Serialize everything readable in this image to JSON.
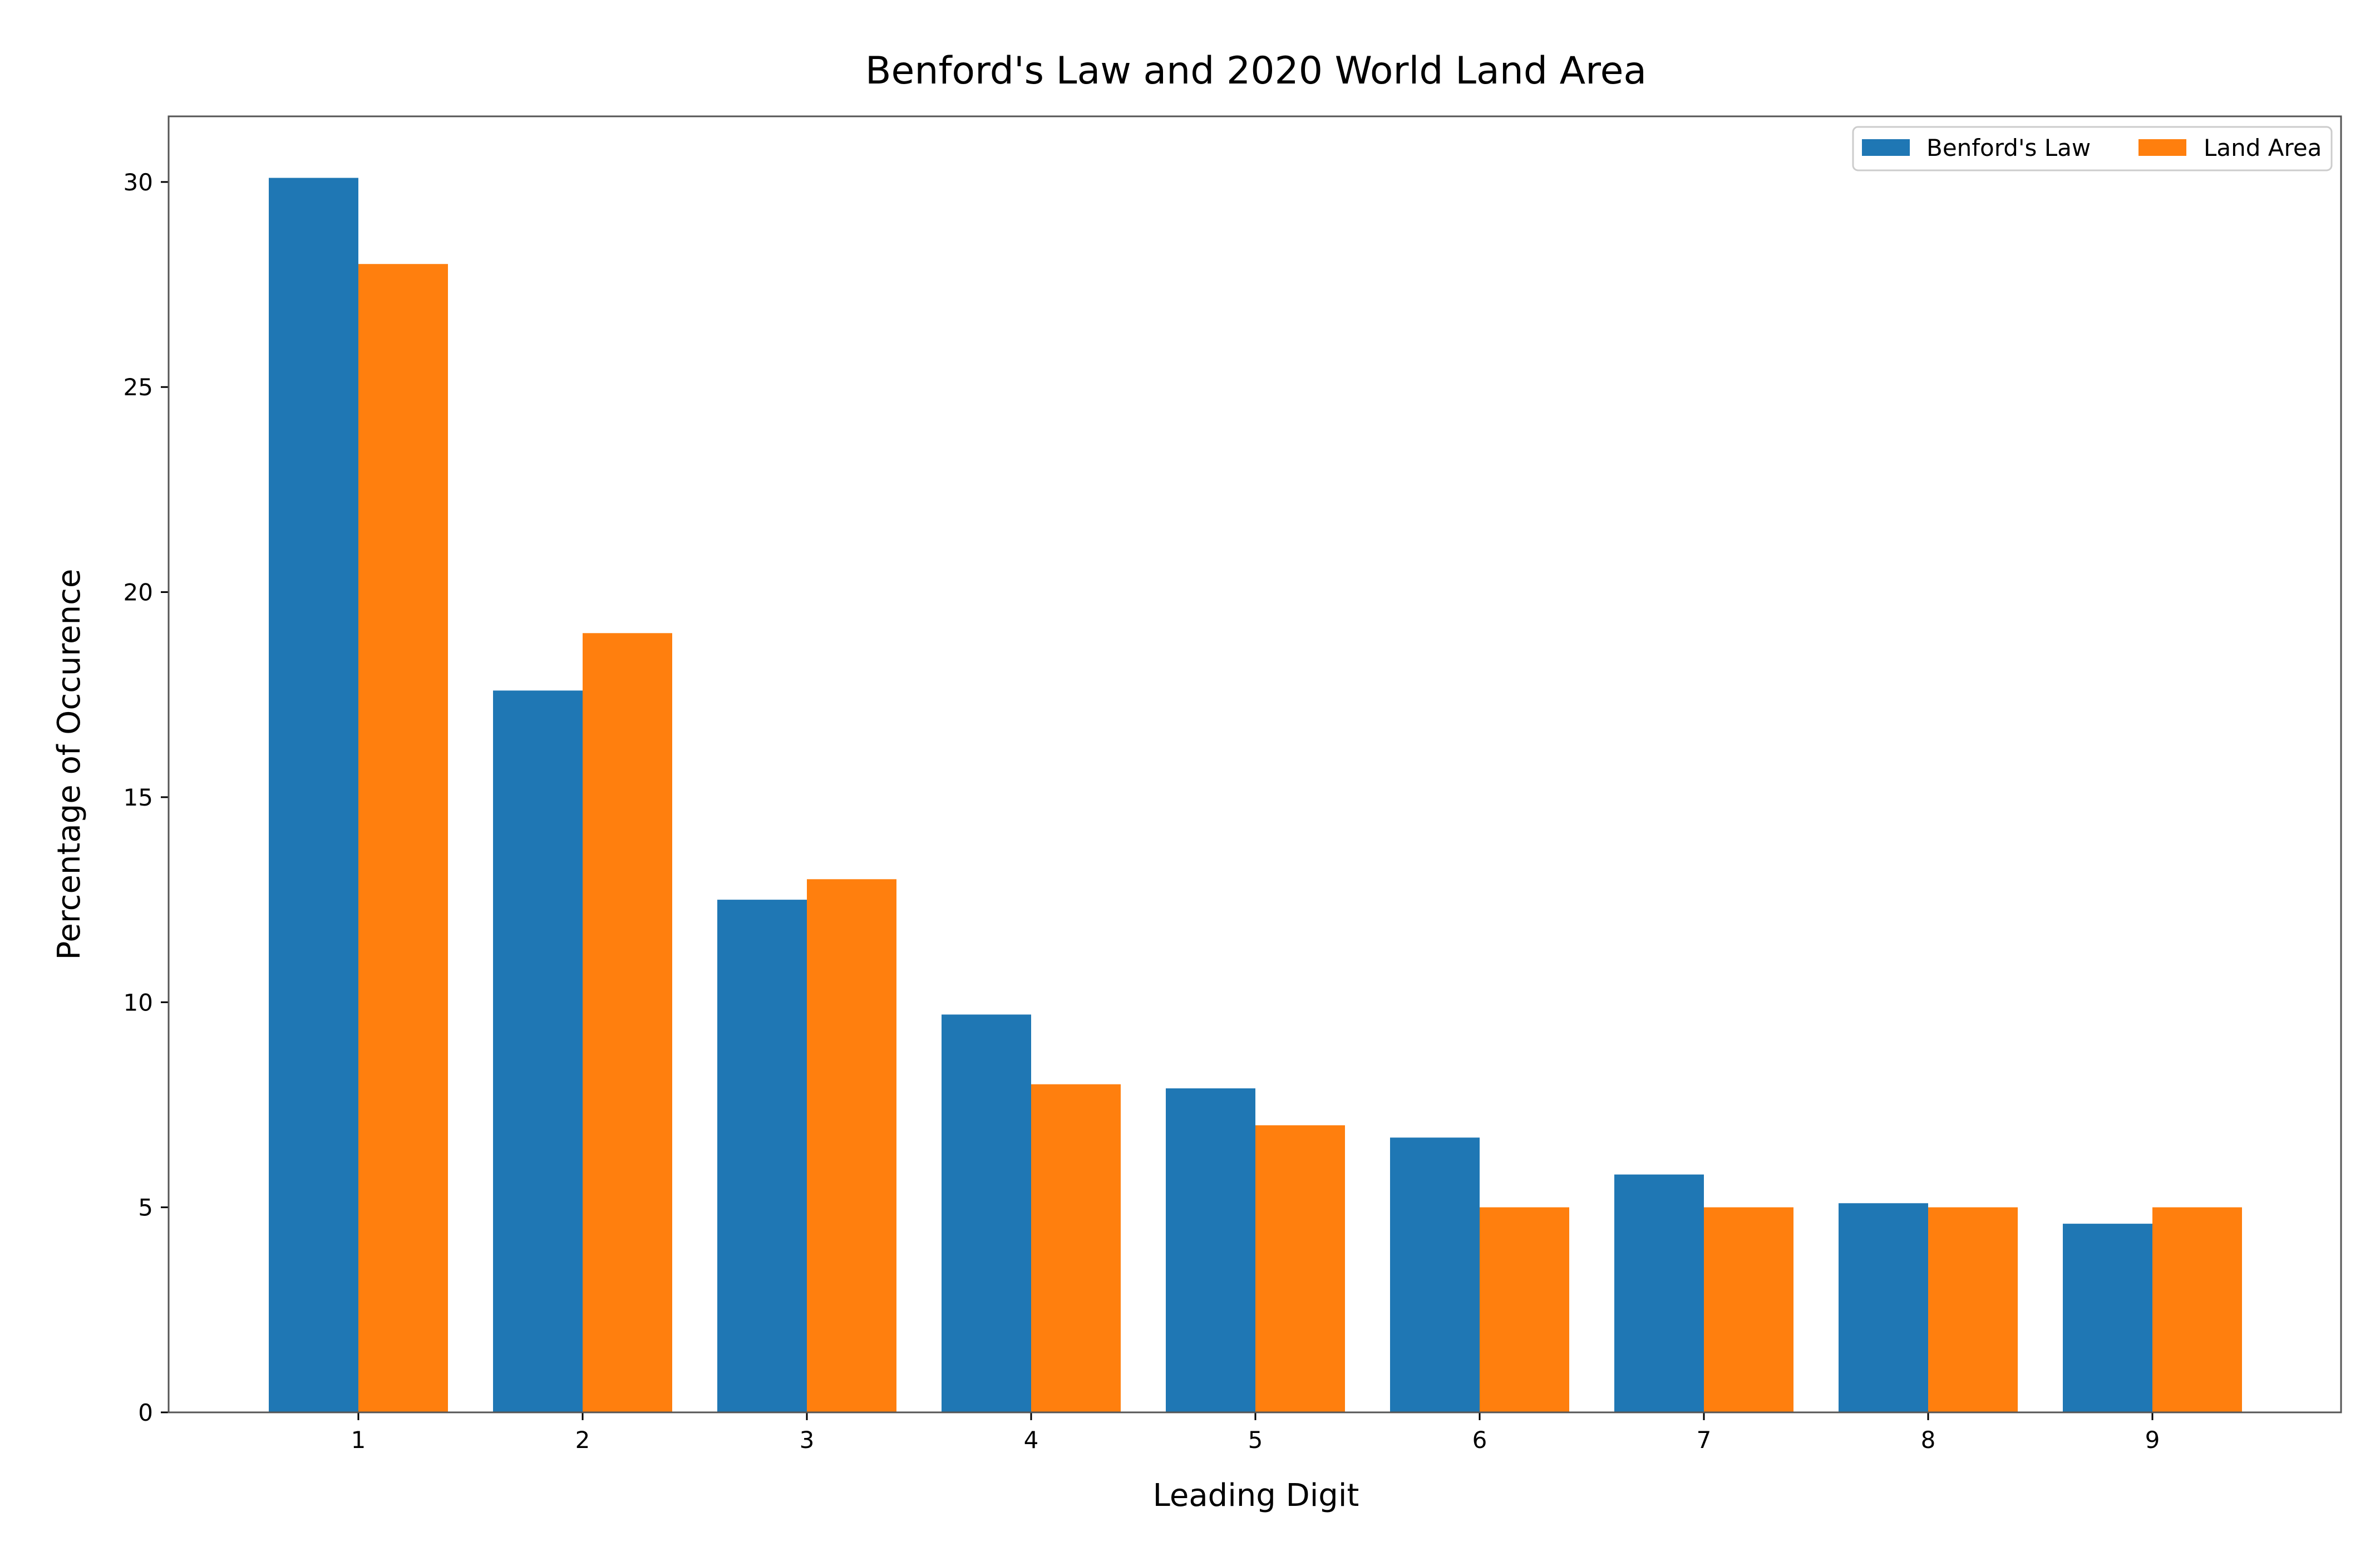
{
  "chart_data": {
    "type": "bar",
    "title": "Benford's Law and 2020 World Land Area",
    "xlabel": "Leading Digit",
    "ylabel": "Percentage of Occurence",
    "categories": [
      "1",
      "2",
      "3",
      "4",
      "5",
      "6",
      "7",
      "8",
      "9"
    ],
    "series": [
      {
        "name": "Benford's Law",
        "color": "#1f77b4",
        "values": [
          30.1,
          17.6,
          12.5,
          9.7,
          7.9,
          6.7,
          5.8,
          5.1,
          4.6
        ]
      },
      {
        "name": "Land Area",
        "color": "#ff7f0e",
        "values": [
          28,
          19,
          13,
          8,
          7,
          5,
          5,
          5,
          5
        ]
      }
    ],
    "ylim": [
      0,
      31.6
    ],
    "yticks": [
      0,
      5,
      10,
      15,
      20,
      25,
      30
    ],
    "grid": false,
    "legend": {
      "placement": "top-right",
      "columns": 2
    }
  }
}
